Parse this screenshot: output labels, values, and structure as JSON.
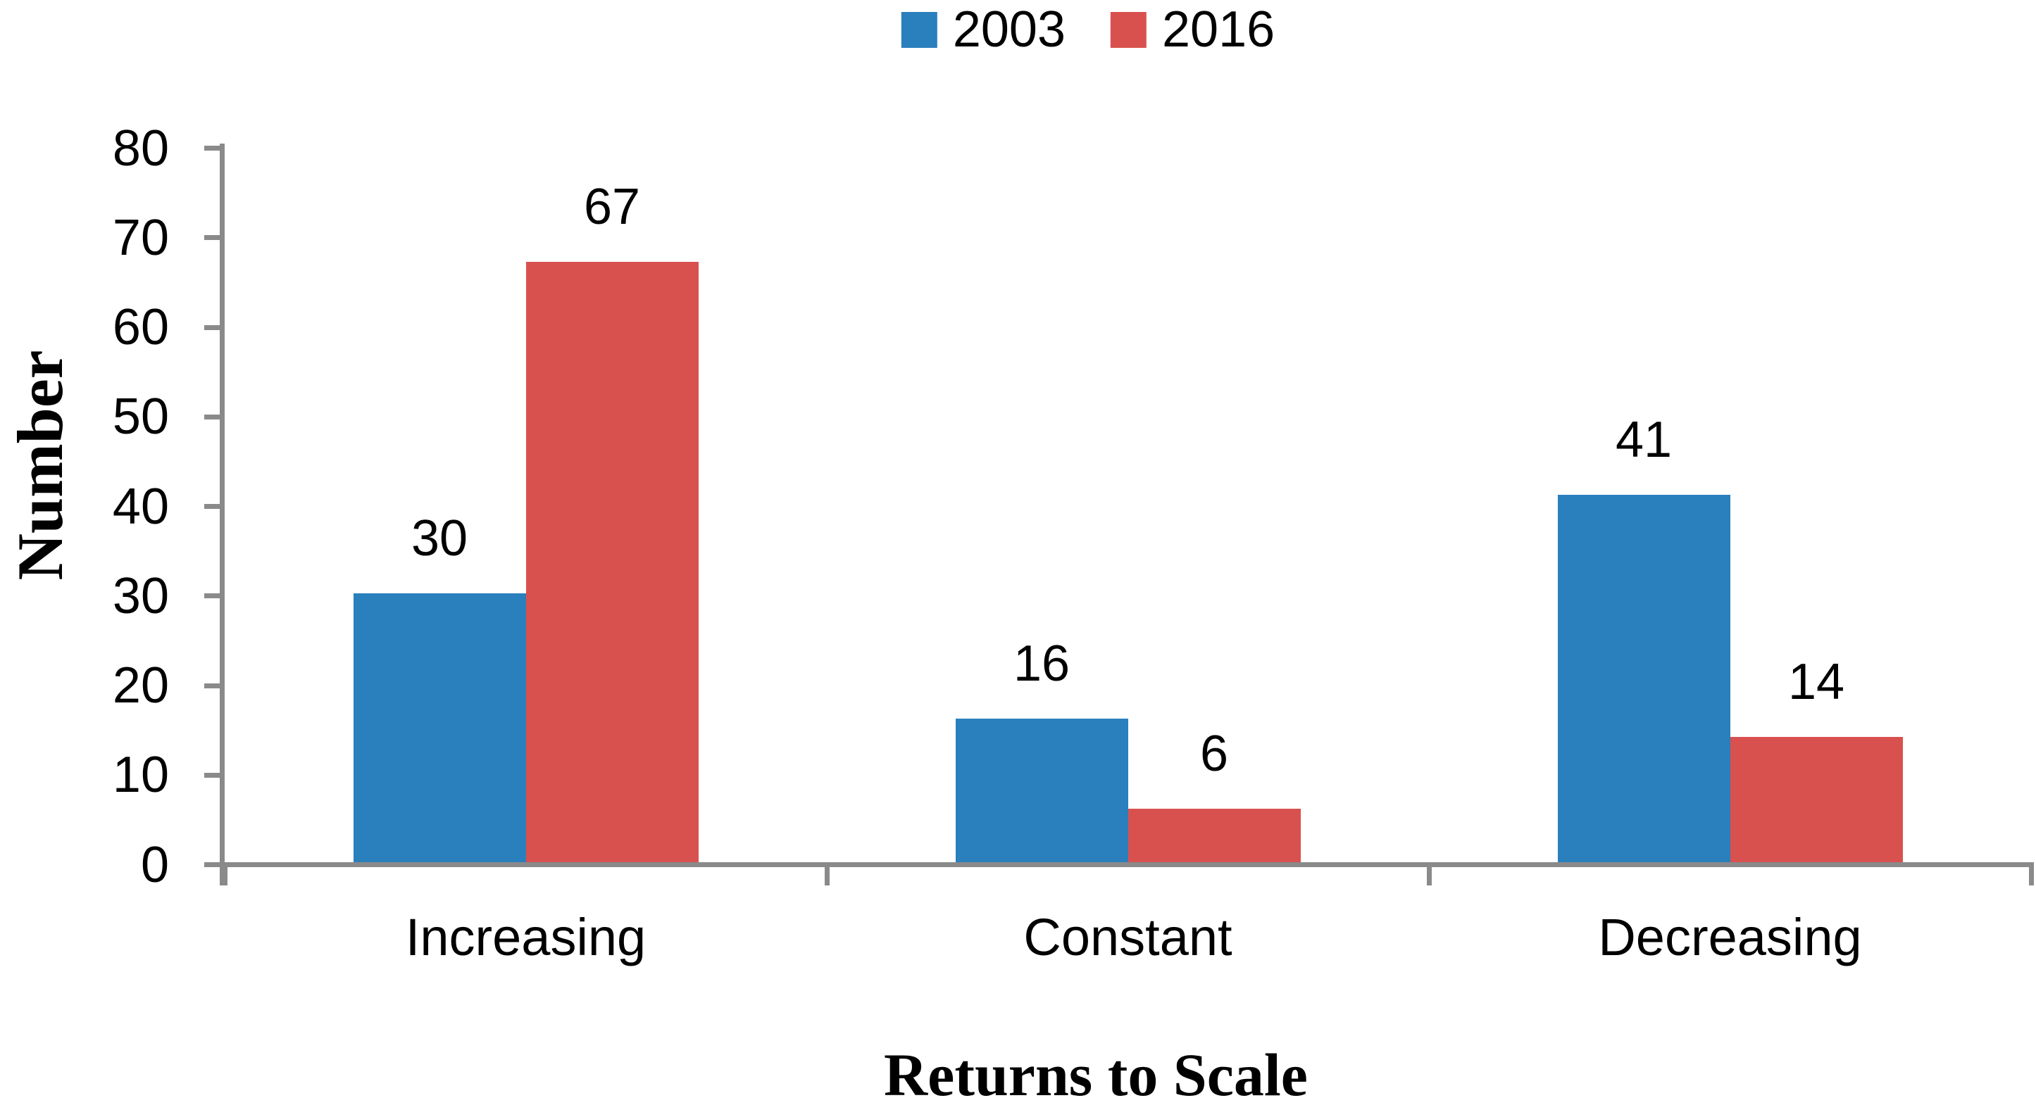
{
  "chart_data": {
    "type": "bar",
    "title": "",
    "categories": [
      "Increasing",
      "Constant",
      "Decreasing"
    ],
    "series": [
      {
        "name": "2003",
        "color": "#2A7FBD",
        "values": [
          30,
          16,
          41
        ]
      },
      {
        "name": "2016",
        "color": "#D9514E",
        "values": [
          67,
          6,
          14
        ]
      }
    ],
    "bar_value_labels": {
      "2003": [
        "30",
        "16",
        "41"
      ],
      "2016": [
        "67",
        "6",
        "14"
      ]
    },
    "xlabel": "Returns to Scale",
    "ylabel": "Number",
    "ylim": [
      0,
      80
    ],
    "yticks": [
      0,
      10,
      20,
      30,
      40,
      50,
      60,
      70,
      80
    ],
    "grid": false,
    "legend_position": "top-center",
    "axis_color": "#8A8A8A",
    "text_color": "#000000"
  }
}
